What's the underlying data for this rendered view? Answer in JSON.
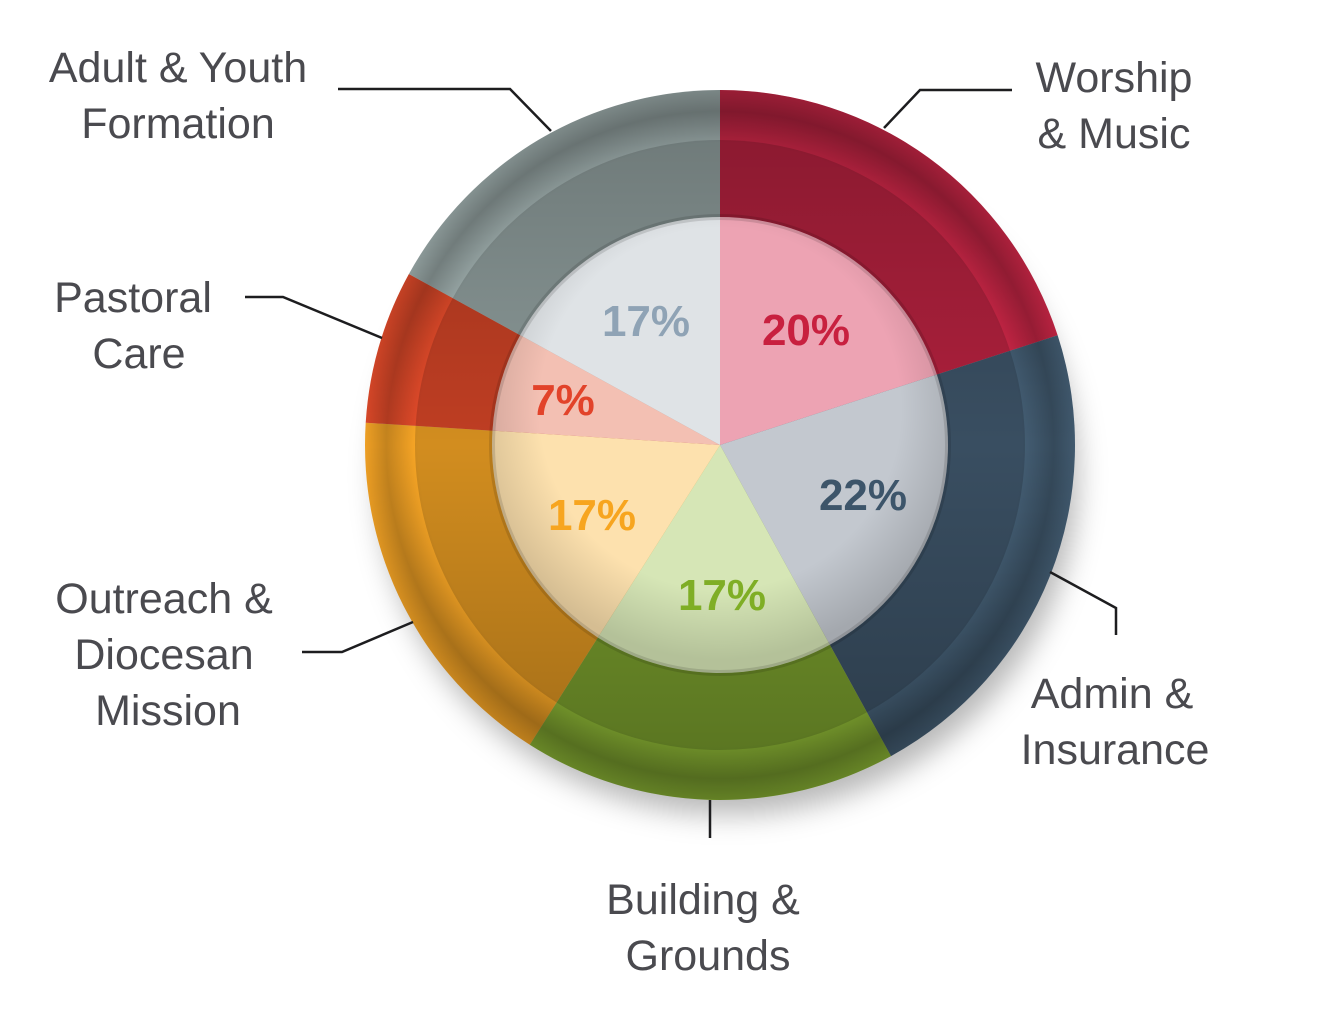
{
  "chart_data": {
    "type": "pie",
    "title": "",
    "slices": [
      {
        "name": "Worship & Music",
        "label_lines": [
          "Worship",
          "& Music"
        ],
        "value": 20,
        "value_label": "20%",
        "color": "#cf2748",
        "inner_color": "#eda3b3",
        "text_color": "#c8203f"
      },
      {
        "name": "Admin & Insurance",
        "label_lines": [
          "Admin &",
          "Insurance"
        ],
        "value": 22,
        "value_label": "22%",
        "color": "#445e74",
        "inner_color": "#c3c8cf",
        "text_color": "#3d556a"
      },
      {
        "name": "Building & Grounds",
        "label_lines": [
          "Building &",
          "Grounds"
        ],
        "value": 17,
        "value_label": "17%",
        "color": "#8bb434",
        "inner_color": "#d6e6b6",
        "text_color": "#7fae25"
      },
      {
        "name": "Outreach & Diocesan Mission",
        "label_lines": [
          "Outreach &",
          "Diocesan",
          "Mission"
        ],
        "value": 17,
        "value_label": "17%",
        "color": "#fba826",
        "inner_color": "#fde1ae",
        "text_color": "#f7a51f"
      },
      {
        "name": "Pastoral Care",
        "label_lines": [
          "Pastoral",
          "Care"
        ],
        "value": 7,
        "value_label": "7%",
        "color": "#e44b2a",
        "inner_color": "#f3c0b3",
        "text_color": "#e2432a"
      },
      {
        "name": "Adult & Youth Formation",
        "label_lines": [
          "Adult & Youth",
          "Formation"
        ],
        "value": 17,
        "value_label": "17%",
        "color": "#a5b5b4",
        "inner_color": "#dfe3e6",
        "text_color": "#8fa3b5"
      }
    ]
  }
}
